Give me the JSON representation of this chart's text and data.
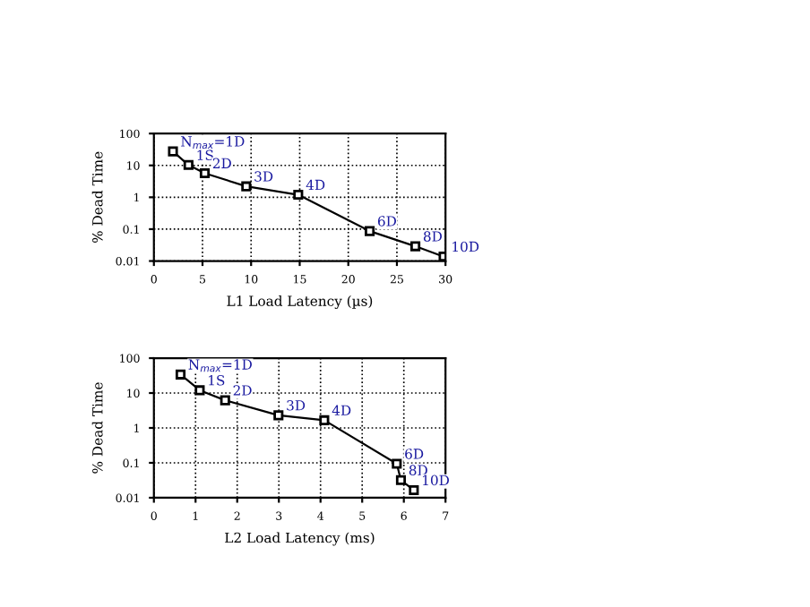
{
  "chart_data": [
    {
      "type": "line",
      "xlabel": "L1 Load Latency (µs)",
      "ylabel": "% Dead Time",
      "log": "y",
      "xlim": [
        0,
        30
      ],
      "xticks": [
        0,
        5,
        10,
        15,
        20,
        25,
        30
      ],
      "ylim": [
        0.01,
        100
      ],
      "yticks": [
        0.01,
        0.1,
        1,
        10,
        100
      ],
      "grid": true,
      "marker": "square",
      "line_style": "solid",
      "series": [
        {
          "color": "#000000",
          "x": [
            1.96,
            3.56,
            5.23,
            9.5,
            14.85,
            22.2,
            26.9,
            29.8
          ],
          "values": [
            27.5,
            10.3,
            5.7,
            2.2,
            1.2,
            0.087,
            0.029,
            0.0138
          ]
        }
      ],
      "annotations": [
        {
          "text": "N$_{max}$=1D",
          "x": 1.96,
          "y": 27.5
        },
        {
          "text": "1S",
          "x": 3.56,
          "y": 10.3
        },
        {
          "text": "2D",
          "x": 5.23,
          "y": 5.7
        },
        {
          "text": "3D",
          "x": 9.5,
          "y": 2.2
        },
        {
          "text": "4D",
          "x": 14.85,
          "y": 1.2
        },
        {
          "text": "6D",
          "x": 22.2,
          "y": 0.087
        },
        {
          "text": "8D",
          "x": 26.9,
          "y": 0.029
        },
        {
          "text": "10D",
          "x": 29.8,
          "y": 0.0138
        }
      ]
    },
    {
      "type": "line",
      "xlabel": "L2 Load Latency (ms)",
      "ylabel": "% Dead Time",
      "log": "y",
      "xlim": [
        0,
        7
      ],
      "xticks": [
        0,
        1,
        2,
        3,
        4,
        5,
        6,
        7
      ],
      "ylim": [
        0.01,
        100
      ],
      "yticks": [
        0.01,
        0.1,
        1,
        10,
        100
      ],
      "grid": true,
      "marker": "square",
      "line_style": "solid",
      "series": [
        {
          "color": "#000000",
          "x": [
            0.64,
            1.1,
            1.71,
            2.99,
            4.09,
            5.83,
            5.93,
            6.24
          ],
          "values": [
            33.9,
            12,
            6.2,
            2.3,
            1.66,
            0.094,
            0.032,
            0.0165
          ]
        }
      ],
      "annotations": [
        {
          "text": "N$_{max}$=1D",
          "x": 0.64,
          "y": 33.9
        },
        {
          "text": "1S",
          "x": 1.1,
          "y": 12
        },
        {
          "text": "2D",
          "x": 1.71,
          "y": 6.2
        },
        {
          "text": "3D",
          "x": 2.99,
          "y": 2.3
        },
        {
          "text": "4D",
          "x": 4.09,
          "y": 1.66
        },
        {
          "text": "6D",
          "x": 5.83,
          "y": 0.094
        },
        {
          "text": "8D",
          "x": 5.93,
          "y": 0.032
        },
        {
          "text": "10D",
          "x": 6.24,
          "y": 0.0165
        }
      ]
    }
  ]
}
